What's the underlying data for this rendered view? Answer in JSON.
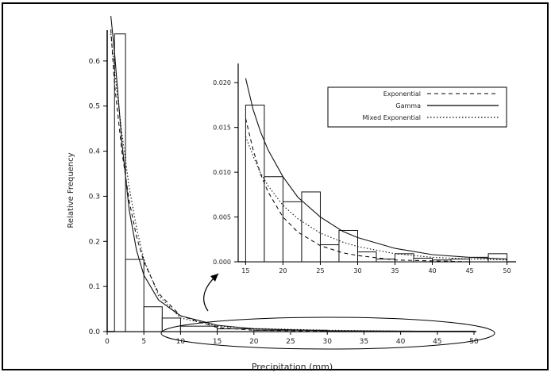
{
  "chart_data": [
    {
      "id": "main",
      "type": "histogram",
      "xlabel": "Precipitation (mm)",
      "ylabel": "Relative Frequency",
      "xlim": [
        0,
        50
      ],
      "ylim": [
        0,
        0.7
      ],
      "xticks": [
        0,
        5,
        10,
        15,
        20,
        25,
        30,
        35,
        40,
        45,
        50
      ],
      "yticks": [
        0.0,
        0.1,
        0.2,
        0.3,
        0.4,
        0.5,
        0.6
      ],
      "ytick_labels": [
        "0.0",
        "0.1",
        "0.2",
        "0.3",
        "0.4",
        "0.5",
        "0.6"
      ],
      "grid": false,
      "bins": [
        {
          "x0": 1,
          "x1": 2.5,
          "value": 0.66
        },
        {
          "x0": 2.5,
          "x1": 5,
          "value": 0.16
        },
        {
          "x0": 5,
          "x1": 7.5,
          "value": 0.055
        },
        {
          "x0": 7.5,
          "x1": 10,
          "value": 0.03
        },
        {
          "x0": 10,
          "x1": 15,
          "value": 0.012
        },
        {
          "x0": 15,
          "x1": 20,
          "value": 0.006
        },
        {
          "x0": 20,
          "x1": 30,
          "value": 0.003
        },
        {
          "x0": 30,
          "x1": 50,
          "value": 0.001
        }
      ],
      "series": [
        {
          "name": "Exponential",
          "style": "dashed",
          "x": [
            0.5,
            1,
            2,
            3,
            4,
            5,
            7,
            10,
            15,
            20,
            30,
            40,
            50
          ],
          "y": [
            0.67,
            0.55,
            0.4,
            0.29,
            0.21,
            0.155,
            0.085,
            0.035,
            0.009,
            0.003,
            0.001,
            0.0,
            0.0
          ]
        },
        {
          "name": "Gamma",
          "style": "solid",
          "x": [
            0.5,
            1,
            2,
            3,
            4,
            5,
            7,
            10,
            15,
            20,
            30,
            40,
            50
          ],
          "y": [
            0.7,
            0.62,
            0.42,
            0.27,
            0.18,
            0.125,
            0.07,
            0.035,
            0.014,
            0.006,
            0.002,
            0.001,
            0.0
          ]
        },
        {
          "name": "Mixed Exponential",
          "style": "dotted",
          "x": [
            0.5,
            1,
            2,
            3,
            4,
            5,
            7,
            10,
            15,
            20,
            30,
            40,
            50
          ],
          "y": [
            0.66,
            0.58,
            0.44,
            0.32,
            0.23,
            0.16,
            0.08,
            0.03,
            0.012,
            0.007,
            0.003,
            0.001,
            0.0
          ]
        }
      ]
    },
    {
      "id": "inset",
      "type": "histogram",
      "xlim": [
        14,
        51
      ],
      "ylim": [
        0,
        0.0225
      ],
      "xticks": [
        15,
        20,
        25,
        30,
        35,
        40,
        45,
        50
      ],
      "xtick_labels": [
        "15",
        "20",
        "25",
        "30",
        "35",
        "40",
        "45",
        "50"
      ],
      "yticks": [
        0.0,
        0.005,
        0.01,
        0.015,
        0.02
      ],
      "ytick_labels": [
        "0.000",
        "0.005",
        "0.010",
        "0.015",
        "0.020"
      ],
      "bins": [
        {
          "x0": 15,
          "x1": 17.5,
          "value": 0.0175
        },
        {
          "x0": 17.5,
          "x1": 20,
          "value": 0.0095
        },
        {
          "x0": 20,
          "x1": 22.5,
          "value": 0.0067
        },
        {
          "x0": 22.5,
          "x1": 25,
          "value": 0.0078
        },
        {
          "x0": 25,
          "x1": 27.5,
          "value": 0.0019
        },
        {
          "x0": 27.5,
          "x1": 30,
          "value": 0.0035
        },
        {
          "x0": 30,
          "x1": 32.5,
          "value": 0.0011
        },
        {
          "x0": 32.5,
          "x1": 35,
          "value": 0.0003
        },
        {
          "x0": 35,
          "x1": 37.5,
          "value": 0.0009
        },
        {
          "x0": 37.5,
          "x1": 40,
          "value": 0.0004
        },
        {
          "x0": 40,
          "x1": 42.5,
          "value": 0.0002
        },
        {
          "x0": 42.5,
          "x1": 45,
          "value": 0.0003
        },
        {
          "x0": 45,
          "x1": 47.5,
          "value": 0.0005
        },
        {
          "x0": 47.5,
          "x1": 50,
          "value": 0.0009
        }
      ],
      "series": [
        {
          "name": "Exponential",
          "style": "dashed",
          "x": [
            15,
            16,
            17,
            18,
            20,
            22,
            25,
            28,
            30,
            35,
            40,
            45,
            50
          ],
          "y": [
            0.016,
            0.0125,
            0.0098,
            0.0078,
            0.005,
            0.0033,
            0.0018,
            0.001,
            0.0007,
            0.0002,
            0.0001,
            0.0,
            0.0
          ]
        },
        {
          "name": "Gamma",
          "style": "solid",
          "x": [
            15,
            16,
            17,
            18,
            20,
            22,
            25,
            28,
            30,
            35,
            40,
            45,
            50
          ],
          "y": [
            0.0205,
            0.017,
            0.0145,
            0.0125,
            0.0095,
            0.0072,
            0.005,
            0.0034,
            0.0027,
            0.0015,
            0.0008,
            0.0005,
            0.0003
          ]
        },
        {
          "name": "Mixed Exponential",
          "style": "dotted",
          "x": [
            15,
            16,
            17,
            18,
            20,
            22,
            25,
            28,
            30,
            35,
            40,
            45,
            50
          ],
          "y": [
            0.014,
            0.0118,
            0.0099,
            0.0085,
            0.0063,
            0.0048,
            0.0032,
            0.0022,
            0.0017,
            0.0009,
            0.0005,
            0.0003,
            0.0002
          ]
        }
      ],
      "legend": {
        "placement": "top-right",
        "entries": [
          {
            "label": "Exponential",
            "style": "dashed"
          },
          {
            "label": "Gamma",
            "style": "solid"
          },
          {
            "label": "Mixed Exponential",
            "style": "dotted"
          }
        ]
      }
    }
  ],
  "colors": {
    "ink": "#1a1a1a",
    "frame": "#000000",
    "background": "#ffffff"
  }
}
